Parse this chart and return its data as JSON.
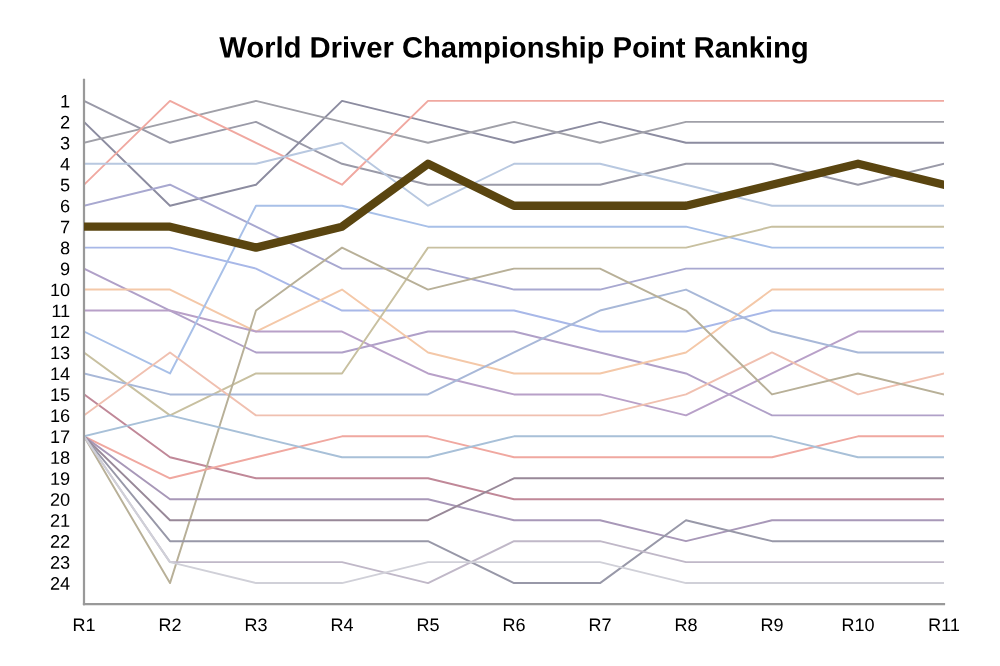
{
  "chart_data": {
    "type": "line",
    "title": "World Driver Championship Point Ranking",
    "categories": [
      "R1",
      "R2",
      "R3",
      "R4",
      "R5",
      "R6",
      "R7",
      "R8",
      "R9",
      "R10",
      "R11"
    ],
    "ylim": [
      25,
      0
    ],
    "yticks": [
      1,
      2,
      3,
      4,
      5,
      6,
      7,
      8,
      9,
      10,
      11,
      12,
      13,
      14,
      15,
      16,
      17,
      18,
      19,
      20,
      21,
      22,
      23,
      24
    ],
    "grid": false,
    "marker": "none",
    "line_style": "solid",
    "series": [
      {
        "color": "#9a9aa8",
        "values": [
          1,
          3,
          2,
          4,
          5,
          5,
          5,
          4,
          4,
          5,
          4
        ]
      },
      {
        "color": "#8c8ca0",
        "values": [
          2,
          6,
          5,
          1,
          2,
          3,
          2,
          3,
          3,
          3,
          3
        ]
      },
      {
        "color": "#a0a0a8",
        "values": [
          3,
          2,
          1,
          2,
          3,
          2,
          3,
          2,
          2,
          2,
          2
        ]
      },
      {
        "color": "#f0a8a0",
        "values": [
          5,
          1,
          3,
          5,
          1,
          1,
          1,
          1,
          1,
          1,
          1
        ]
      },
      {
        "color": "#b8c8e0",
        "values": [
          4,
          4,
          4,
          3,
          6,
          4,
          4,
          5,
          6,
          6,
          6
        ]
      },
      {
        "color": "#a8a8d0",
        "values": [
          6,
          5,
          7,
          9,
          9,
          10,
          10,
          9,
          9,
          9,
          9
        ]
      },
      {
        "color": "#a8b8e8",
        "values": [
          8,
          8,
          9,
          11,
          11,
          11,
          12,
          12,
          11,
          11,
          11
        ]
      },
      {
        "color": "#b0a0c8",
        "values": [
          9,
          11,
          13,
          13,
          12,
          12,
          13,
          14,
          16,
          16,
          16
        ]
      },
      {
        "color": "#f4c8a8",
        "values": [
          10,
          10,
          12,
          10,
          13,
          14,
          14,
          13,
          10,
          10,
          10
        ]
      },
      {
        "color": "#b8a0c8",
        "values": [
          11,
          11,
          12,
          12,
          14,
          15,
          15,
          16,
          14,
          12,
          12
        ]
      },
      {
        "color": "#a8c0e8",
        "values": [
          12,
          14,
          6,
          6,
          7,
          7,
          7,
          7,
          8,
          8,
          8
        ]
      },
      {
        "color": "#c8c0a0",
        "values": [
          13,
          16,
          14,
          14,
          8,
          8,
          8,
          8,
          7,
          7,
          7
        ]
      },
      {
        "color": "#a8b8d8",
        "values": [
          14,
          15,
          15,
          15,
          15,
          13,
          11,
          10,
          12,
          13,
          13
        ]
      },
      {
        "color": "#c08898",
        "values": [
          15,
          18,
          19,
          19,
          19,
          20,
          20,
          20,
          20,
          20,
          20
        ]
      },
      {
        "color": "#f0c0b0",
        "values": [
          16,
          13,
          16,
          16,
          16,
          16,
          16,
          15,
          13,
          15,
          14
        ]
      },
      {
        "color": "#b8b098",
        "values": [
          17,
          24,
          11,
          8,
          10,
          9,
          9,
          11,
          15,
          14,
          15
        ]
      },
      {
        "color": "#f0a8a0",
        "values": [
          17,
          19,
          18,
          17,
          17,
          18,
          18,
          18,
          18,
          17,
          17
        ]
      },
      {
        "color": "#a898b8",
        "values": [
          17,
          20,
          20,
          20,
          20,
          21,
          21,
          22,
          21,
          21,
          21
        ]
      },
      {
        "color": "#988898",
        "values": [
          17,
          21,
          21,
          21,
          21,
          19,
          19,
          19,
          19,
          19,
          19
        ]
      },
      {
        "color": "#9898a8",
        "values": [
          17,
          22,
          22,
          22,
          22,
          24,
          24,
          21,
          22,
          22,
          22
        ]
      },
      {
        "color": "#c0b8c8",
        "values": [
          17,
          23,
          23,
          23,
          24,
          22,
          22,
          23,
          23,
          23,
          23
        ]
      },
      {
        "color": "#d0d0d8",
        "values": [
          17,
          23,
          24,
          24,
          23,
          23,
          23,
          24,
          24,
          24,
          24
        ]
      },
      {
        "color": "#a8c0d8",
        "values": [
          17,
          16,
          17,
          18,
          18,
          17,
          17,
          17,
          17,
          18,
          18
        ]
      },
      {
        "color": "#5a4510",
        "values": [
          7,
          7,
          8,
          7,
          4,
          6,
          6,
          6,
          5,
          4,
          5
        ]
      }
    ]
  }
}
